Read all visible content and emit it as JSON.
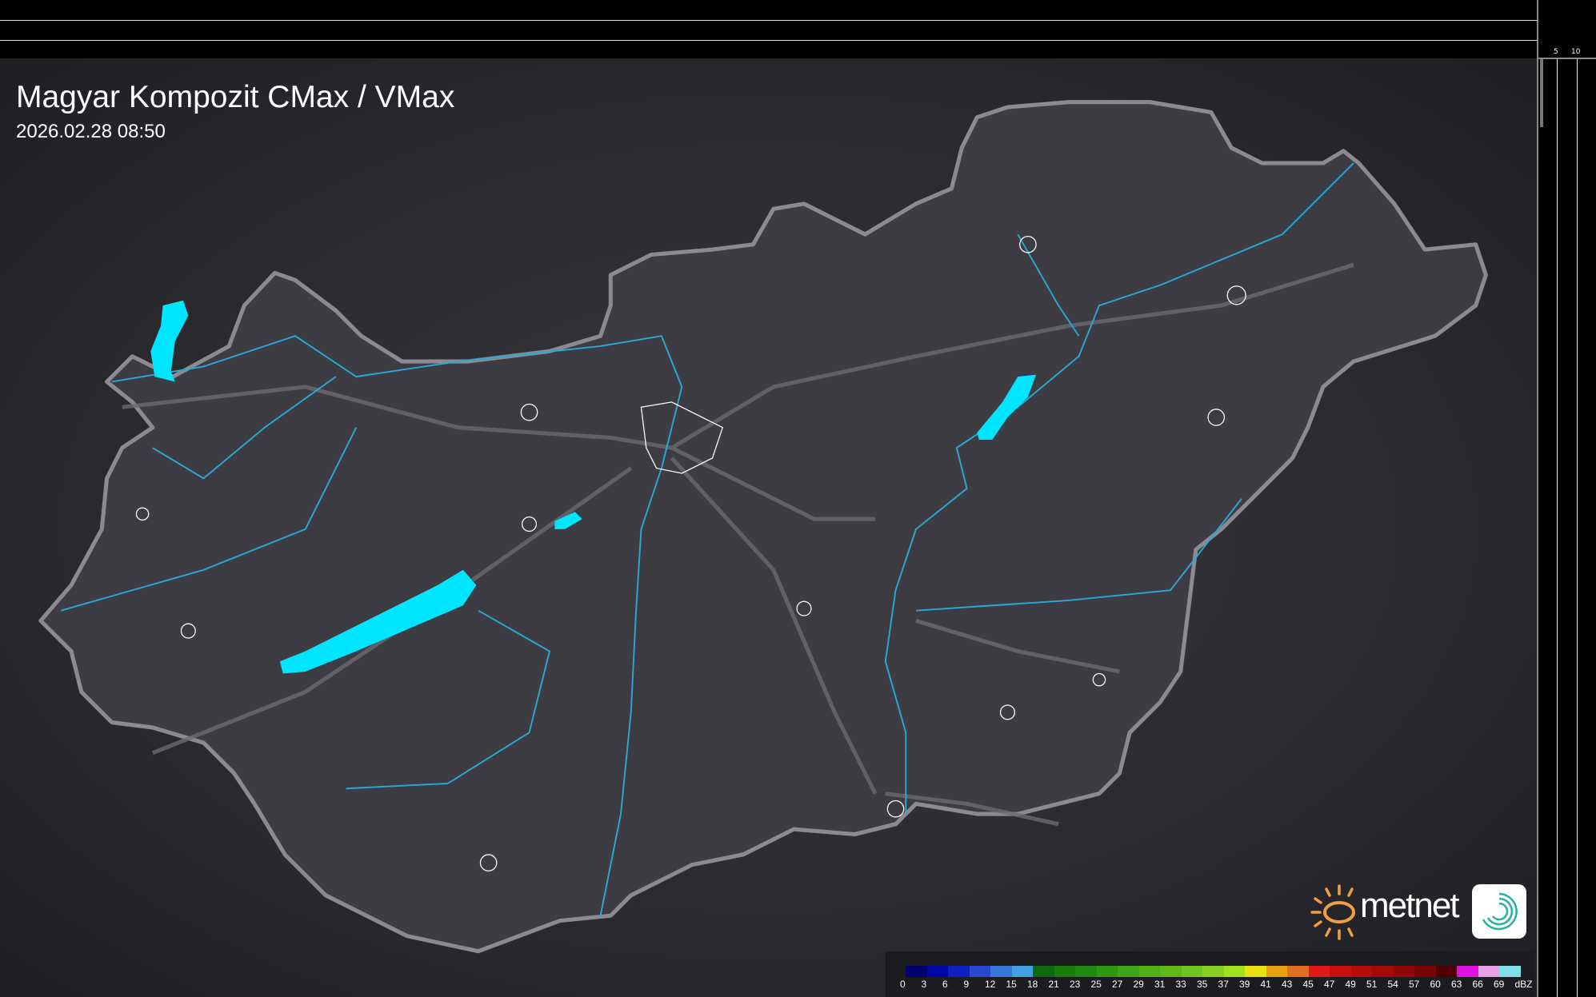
{
  "header": {
    "title": "Magyar Kompozit CMax / VMax",
    "timestamp": "2026.02.28 08:50"
  },
  "scale_ticks": {
    "horizontal": [
      "10",
      "5"
    ],
    "vertical": [
      "5",
      "10"
    ]
  },
  "legend": {
    "unit": "dBZ",
    "labels": [
      "0",
      "3",
      "6",
      "9",
      "12",
      "15",
      "18",
      "21",
      "23",
      "25",
      "27",
      "29",
      "31",
      "33",
      "35",
      "37",
      "39",
      "41",
      "43",
      "45",
      "47",
      "49",
      "51",
      "54",
      "57",
      "60",
      "63",
      "66",
      "69"
    ],
    "colors": [
      "#000070",
      "#0008a8",
      "#1020c0",
      "#2848d0",
      "#3878d8",
      "#40a0e0",
      "#106810",
      "#1a7a0a",
      "#208a10",
      "#30980f",
      "#40a418",
      "#50b018",
      "#60b818",
      "#70c420",
      "#88d020",
      "#a0e020",
      "#e8e010",
      "#e8a010",
      "#e07020",
      "#e01818",
      "#c81010",
      "#b80c0c",
      "#a80808",
      "#900808",
      "#780404",
      "#500000",
      "#e010e0",
      "#e8a0e8",
      "#80e0e8"
    ]
  },
  "brand": {
    "logo": "metnet",
    "sun_color": "#f0a040",
    "app_icon_color": "#2ab0a0"
  },
  "map": {
    "water_color": "#00e5ff",
    "river_color": "#2aa8d8",
    "border_color": "#8a8a90"
  }
}
